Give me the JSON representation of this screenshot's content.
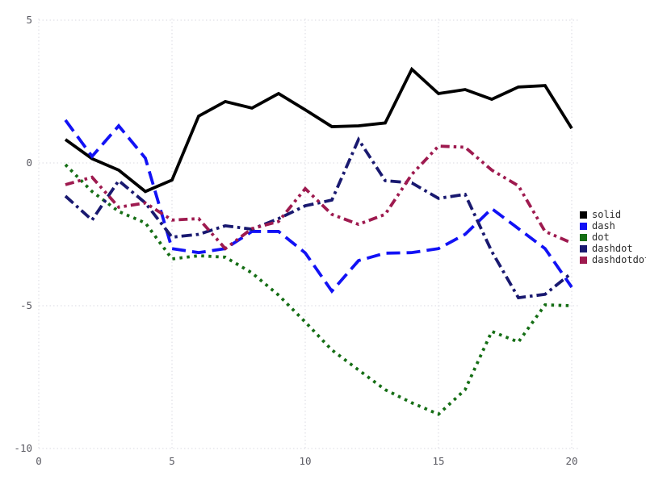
{
  "chart_data": {
    "type": "line",
    "title": "",
    "xlabel": "",
    "ylabel": "",
    "x": [
      1,
      2,
      3,
      4,
      5,
      6,
      7,
      8,
      9,
      10,
      11,
      12,
      13,
      14,
      15,
      16,
      17,
      18,
      19,
      20
    ],
    "series": [
      {
        "name": "solid",
        "color": "#000000",
        "style": "solid",
        "values": [
          0.82,
          0.15,
          -0.25,
          -1.0,
          -0.6,
          1.64,
          2.15,
          1.92,
          2.43,
          1.86,
          1.27,
          1.3,
          1.4,
          3.28,
          2.43,
          2.57,
          2.23,
          2.66,
          2.71,
          1.21
        ]
      },
      {
        "name": "dash",
        "color": "#1212f5",
        "style": "dash",
        "values": [
          1.5,
          0.23,
          1.3,
          0.17,
          -3.0,
          -3.14,
          -3.0,
          -2.4,
          -2.4,
          -3.15,
          -4.49,
          -3.42,
          -3.16,
          -3.14,
          -3.0,
          -2.5,
          -1.6,
          -2.3,
          -3.0,
          -4.35
        ]
      },
      {
        "name": "dot",
        "color": "#156e15",
        "style": "dot",
        "values": [
          -0.06,
          -1.0,
          -1.7,
          -2.1,
          -3.36,
          -3.25,
          -3.3,
          -3.85,
          -4.63,
          -5.57,
          -6.55,
          -7.25,
          -7.94,
          -8.4,
          -8.8,
          -7.94,
          -5.9,
          -6.27,
          -4.97,
          -5.0
        ]
      },
      {
        "name": "dashdot",
        "color": "#191970",
        "style": "dashdot",
        "values": [
          -1.16,
          -2.0,
          -0.62,
          -1.4,
          -2.6,
          -2.5,
          -2.2,
          -2.32,
          -1.95,
          -1.5,
          -1.3,
          0.82,
          -0.62,
          -0.7,
          -1.24,
          -1.1,
          -3.1,
          -4.72,
          -4.6,
          -3.85
        ]
      },
      {
        "name": "dashdotdot",
        "color": "#9e1a4f",
        "style": "dashdotdot",
        "values": [
          -0.76,
          -0.5,
          -1.55,
          -1.4,
          -2.0,
          -1.95,
          -3.0,
          -2.3,
          -2.05,
          -0.9,
          -1.8,
          -2.15,
          -1.8,
          -0.4,
          0.59,
          0.55,
          -0.25,
          -0.8,
          -2.4,
          -2.8
        ]
      }
    ],
    "x_ticks": [
      "0",
      "5",
      "10",
      "15",
      "20"
    ],
    "y_ticks": [
      "5",
      "0",
      "-5",
      "-10"
    ],
    "x_tick_values": [
      0,
      5,
      10,
      15,
      20
    ],
    "y_tick_values": [
      5,
      0,
      -5,
      -10
    ],
    "xlim": [
      0,
      20
    ],
    "ylim": [
      -10,
      5
    ],
    "grid": true,
    "grid_style": "dotted",
    "legend_position": "right-outside",
    "colors": {
      "background": "#ffffff",
      "gridline": "#d9d9e2",
      "tick_label": "#5a5a62",
      "legend_text": "#2d2d2d"
    }
  },
  "legend": {
    "items": [
      "solid",
      "dash",
      "dot",
      "dashdot",
      "dashdotdot"
    ]
  }
}
